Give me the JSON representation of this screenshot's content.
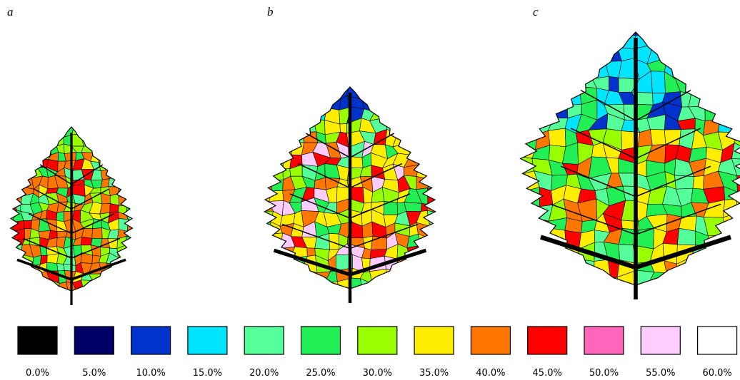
{
  "panels": {
    "a": "a",
    "b": "b",
    "c": "c"
  },
  "legend": {
    "items": [
      {
        "label": "0.0%",
        "color": "#000000"
      },
      {
        "label": "5.0%",
        "color": "#000066"
      },
      {
        "label": "10.0%",
        "color": "#0033cc"
      },
      {
        "label": "15.0%",
        "color": "#00e5ff"
      },
      {
        "label": "20.0%",
        "color": "#55ff99"
      },
      {
        "label": "25.0%",
        "color": "#22ee55"
      },
      {
        "label": "30.0%",
        "color": "#99ff00"
      },
      {
        "label": "35.0%",
        "color": "#ffee00"
      },
      {
        "label": "40.0%",
        "color": "#ff7700"
      },
      {
        "label": "45.0%",
        "color": "#ff0000"
      },
      {
        "label": "50.0%",
        "color": "#ff66bb"
      },
      {
        "label": "55.0%",
        "color": "#ffccff"
      },
      {
        "label": "60.0%",
        "color": "#ffffff"
      }
    ]
  }
}
